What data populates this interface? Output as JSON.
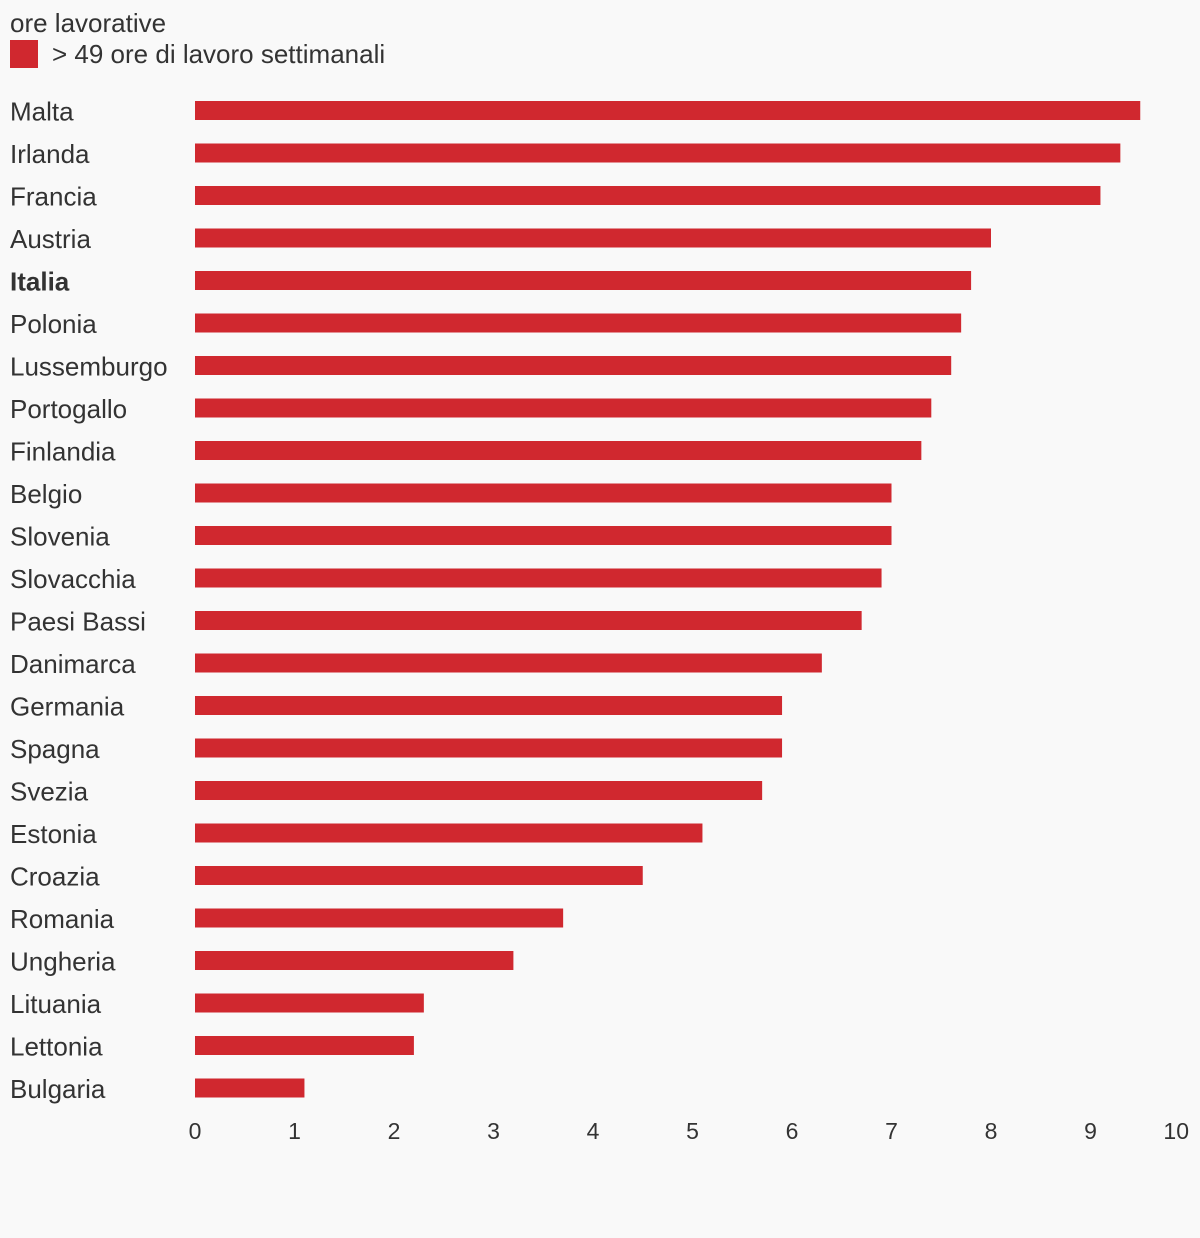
{
  "chart_data": {
    "type": "bar",
    "orientation": "horizontal",
    "title": "ore lavorative",
    "legend": [
      {
        "label": "> 49 ore di lavoro settimanali",
        "color": "#d0282f"
      }
    ],
    "series": [
      {
        "name": "> 49 ore di lavoro settimanali",
        "values": [
          9.5,
          9.3,
          9.1,
          8.0,
          7.8,
          7.7,
          7.6,
          7.4,
          7.3,
          7.0,
          7.0,
          6.9,
          6.7,
          6.3,
          5.9,
          5.9,
          5.7,
          5.1,
          4.5,
          3.7,
          3.2,
          2.3,
          2.2,
          1.1
        ]
      }
    ],
    "categories": [
      "Malta",
      "Irlanda",
      "Francia",
      "Austria",
      "Italia",
      "Polonia",
      "Lussemburgo",
      "Portogallo",
      "Finlandia",
      "Belgio",
      "Slovenia",
      "Slovacchia",
      "Paesi Bassi",
      "Danimarca",
      "Germania",
      "Spagna",
      "Svezia",
      "Estonia",
      "Croazia",
      "Romania",
      "Ungheria",
      "Lituania",
      "Lettonia",
      "Bulgaria"
    ],
    "highlighted_category": "Italia",
    "xlim": [
      0,
      10
    ],
    "xticks": [
      "0",
      "1",
      "2",
      "3",
      "4",
      "5",
      "6",
      "7",
      "8",
      "9",
      "10"
    ],
    "grid": false,
    "bar_color": "#d0282f",
    "legend_position": "top-left"
  }
}
